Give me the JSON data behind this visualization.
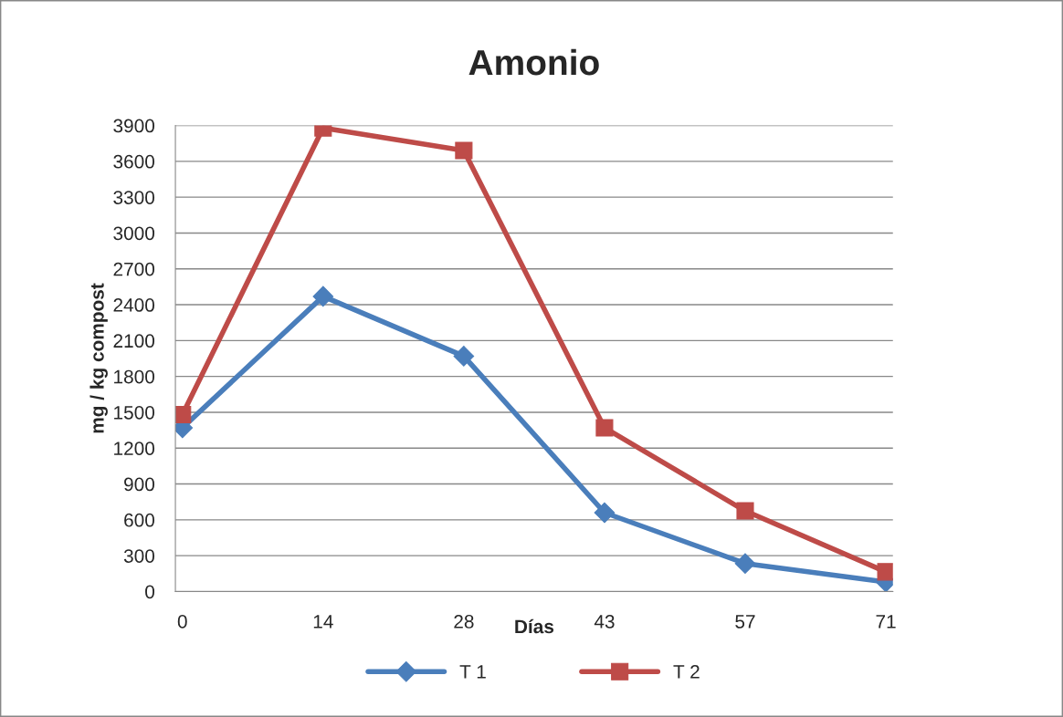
{
  "chart_data": {
    "type": "line",
    "title": "Amonio",
    "xlabel": "Días",
    "ylabel": "mg / kg compost",
    "categories": [
      "0",
      "14",
      "28",
      "43",
      "57",
      "71"
    ],
    "series": [
      {
        "name": "T 1",
        "color": "#4a7ebb",
        "marker": "diamond",
        "values": [
          1370,
          2470,
          1970,
          660,
          235,
          80
        ]
      },
      {
        "name": "T 2",
        "color": "#be4b48",
        "marker": "square",
        "values": [
          1480,
          3880,
          3690,
          1370,
          675,
          165
        ]
      }
    ],
    "ylim": [
      0,
      3900
    ],
    "yticks": [
      0,
      300,
      600,
      900,
      1200,
      1500,
      1800,
      2100,
      2400,
      2700,
      3000,
      3300,
      3600,
      3900
    ],
    "grid": "y",
    "legend": "bottom"
  }
}
